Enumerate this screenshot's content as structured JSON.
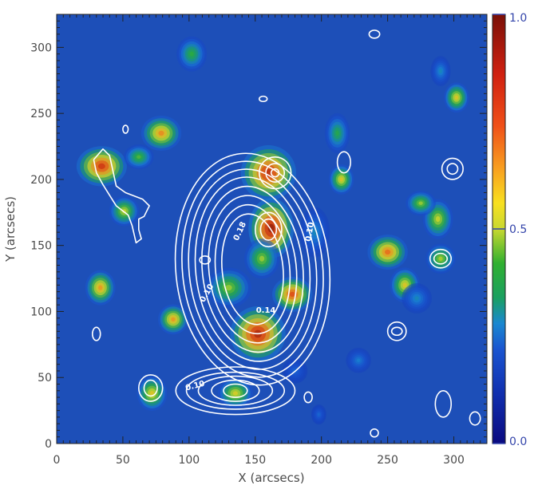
{
  "chart_data": {
    "type": "heatmap",
    "title": "",
    "xlabel": "X (arcsecs)",
    "ylabel": "Y (arcsecs)",
    "xlim": [
      0,
      325
    ],
    "ylim": [
      0,
      325
    ],
    "x_ticks": [
      0,
      50,
      100,
      150,
      200,
      250,
      300
    ],
    "y_ticks": [
      0,
      50,
      100,
      150,
      200,
      250,
      300
    ],
    "colorbar": {
      "range": [
        0.0,
        1.0
      ],
      "tick_values": [
        0.0,
        0.5,
        1.0
      ],
      "tick_labels": [
        "0.0",
        "0.5",
        "1.0"
      ],
      "colormap": "blue-green-yellow-red"
    },
    "background_value": 0.15,
    "blobs": [
      {
        "x": 162,
        "y": 163,
        "value": 1.0,
        "sx": 9,
        "sy": 12
      },
      {
        "x": 160,
        "y": 205,
        "value": 0.92,
        "sx": 11,
        "sy": 11
      },
      {
        "x": 152,
        "y": 83,
        "value": 0.95,
        "sx": 11,
        "sy": 11
      },
      {
        "x": 178,
        "y": 113,
        "value": 0.82,
        "sx": 8,
        "sy": 7
      },
      {
        "x": 34,
        "y": 210,
        "value": 0.88,
        "sx": 10,
        "sy": 8
      },
      {
        "x": 79,
        "y": 235,
        "value": 0.7,
        "sx": 8,
        "sy": 7
      },
      {
        "x": 62,
        "y": 217,
        "value": 0.45,
        "sx": 6,
        "sy": 5
      },
      {
        "x": 51,
        "y": 176,
        "value": 0.55,
        "sx": 6,
        "sy": 6
      },
      {
        "x": 33,
        "y": 118,
        "value": 0.68,
        "sx": 6,
        "sy": 7
      },
      {
        "x": 88,
        "y": 94,
        "value": 0.68,
        "sx": 6,
        "sy": 6
      },
      {
        "x": 72,
        "y": 38,
        "value": 0.6,
        "sx": 6,
        "sy": 7
      },
      {
        "x": 135,
        "y": 38,
        "value": 0.58,
        "sx": 7,
        "sy": 6
      },
      {
        "x": 130,
        "y": 118,
        "value": 0.5,
        "sx": 9,
        "sy": 8
      },
      {
        "x": 155,
        "y": 140,
        "value": 0.5,
        "sx": 7,
        "sy": 8
      },
      {
        "x": 102,
        "y": 295,
        "value": 0.42,
        "sx": 6,
        "sy": 7
      },
      {
        "x": 215,
        "y": 200,
        "value": 0.6,
        "sx": 5,
        "sy": 6
      },
      {
        "x": 212,
        "y": 235,
        "value": 0.4,
        "sx": 5,
        "sy": 8
      },
      {
        "x": 250,
        "y": 145,
        "value": 0.75,
        "sx": 8,
        "sy": 7
      },
      {
        "x": 263,
        "y": 120,
        "value": 0.6,
        "sx": 6,
        "sy": 7
      },
      {
        "x": 290,
        "y": 140,
        "value": 0.52,
        "sx": 6,
        "sy": 6
      },
      {
        "x": 288,
        "y": 170,
        "value": 0.55,
        "sx": 6,
        "sy": 8
      },
      {
        "x": 275,
        "y": 182,
        "value": 0.5,
        "sx": 6,
        "sy": 5
      },
      {
        "x": 302,
        "y": 262,
        "value": 0.6,
        "sx": 5,
        "sy": 6
      },
      {
        "x": 290,
        "y": 282,
        "value": 0.3,
        "sx": 4,
        "sy": 6
      },
      {
        "x": 272,
        "y": 110,
        "value": 0.3,
        "sx": 6,
        "sy": 6
      },
      {
        "x": 195,
        "y": 160,
        "value": 0.3,
        "sx": 6,
        "sy": 10
      },
      {
        "x": 228,
        "y": 63,
        "value": 0.28,
        "sx": 5,
        "sy": 5
      },
      {
        "x": 198,
        "y": 22,
        "value": 0.25,
        "sx": 3,
        "sy": 4
      },
      {
        "x": 180,
        "y": 55,
        "value": 0.25,
        "sx": 5,
        "sy": 5
      }
    ],
    "contour_groups": [
      {
        "cx": 148,
        "cy": 132,
        "levels": [
          {
            "rx": 58,
            "ry": 88
          },
          {
            "rx": 53,
            "ry": 82
          },
          {
            "rx": 48,
            "ry": 76
          },
          {
            "rx": 43,
            "ry": 70
          },
          {
            "rx": 38,
            "ry": 63
          },
          {
            "rx": 33,
            "ry": 56
          },
          {
            "rx": 28,
            "ry": 49
          },
          {
            "rx": 23,
            "ry": 42
          }
        ],
        "rotate": -6
      },
      {
        "cx": 160,
        "cy": 162,
        "levels": [
          {
            "rx": 10,
            "ry": 13
          },
          {
            "rx": 6,
            "ry": 8
          }
        ],
        "rotate": 0
      },
      {
        "cx": 165,
        "cy": 205,
        "levels": [
          {
            "rx": 12,
            "ry": 12
          },
          {
            "rx": 7,
            "ry": 7
          },
          {
            "rx": 3,
            "ry": 3
          }
        ],
        "rotate": 0
      },
      {
        "cx": 135,
        "cy": 40,
        "levels": [
          {
            "rx": 45,
            "ry": 18
          },
          {
            "rx": 37,
            "ry": 14
          },
          {
            "rx": 28,
            "ry": 11
          },
          {
            "rx": 18,
            "ry": 8
          },
          {
            "rx": 9,
            "ry": 5
          }
        ],
        "rotate": 0
      },
      {
        "cx": 71,
        "cy": 42,
        "levels": [
          {
            "rx": 9,
            "ry": 10
          },
          {
            "rx": 5,
            "ry": 6
          }
        ],
        "rotate": 0
      },
      {
        "cx": 299,
        "cy": 208,
        "levels": [
          {
            "rx": 8,
            "ry": 8
          },
          {
            "rx": 4,
            "ry": 4
          }
        ],
        "rotate": 0
      },
      {
        "cx": 290,
        "cy": 140,
        "levels": [
          {
            "rx": 8,
            "ry": 7
          },
          {
            "rx": 5,
            "ry": 4
          }
        ],
        "rotate": 0
      },
      {
        "cx": 257,
        "cy": 85,
        "levels": [
          {
            "rx": 7,
            "ry": 7
          },
          {
            "rx": 4,
            "ry": 3
          }
        ],
        "rotate": 0
      },
      {
        "cx": 292,
        "cy": 30,
        "levels": [
          {
            "rx": 6,
            "ry": 10
          }
        ],
        "rotate": 0
      },
      {
        "cx": 316,
        "cy": 19,
        "levels": [
          {
            "rx": 4,
            "ry": 5
          }
        ],
        "rotate": 0
      },
      {
        "cx": 240,
        "cy": 8,
        "levels": [
          {
            "rx": 3,
            "ry": 3
          }
        ],
        "rotate": 0
      },
      {
        "cx": 30,
        "cy": 83,
        "levels": [
          {
            "rx": 3,
            "ry": 5
          }
        ],
        "rotate": 0
      },
      {
        "cx": 112,
        "cy": 139,
        "levels": [
          {
            "rx": 4,
            "ry": 3
          }
        ],
        "rotate": 0
      },
      {
        "cx": 240,
        "cy": 310,
        "levels": [
          {
            "rx": 4,
            "ry": 3
          }
        ],
        "rotate": 0
      },
      {
        "cx": 156,
        "cy": 261,
        "levels": [
          {
            "rx": 3,
            "ry": 2
          }
        ],
        "rotate": 0
      },
      {
        "cx": 52,
        "cy": 238,
        "levels": [
          {
            "rx": 2,
            "ry": 3
          }
        ],
        "rotate": 0
      },
      {
        "cx": 217,
        "cy": 213,
        "levels": [
          {
            "rx": 5,
            "ry": 8
          }
        ],
        "rotate": 0
      },
      {
        "cx": 190,
        "cy": 35,
        "levels": [
          {
            "rx": 3,
            "ry": 4
          }
        ],
        "rotate": 0
      }
    ],
    "contour_lines": [
      {
        "points": [
          [
            28,
            215
          ],
          [
            35,
            223
          ],
          [
            40,
            218
          ],
          [
            45,
            195
          ],
          [
            52,
            190
          ],
          [
            65,
            185
          ],
          [
            70,
            180
          ],
          [
            66,
            172
          ],
          [
            62,
            170
          ],
          [
            62,
            162
          ],
          [
            64,
            155
          ],
          [
            60,
            152
          ],
          [
            57,
            165
          ],
          [
            54,
            173
          ],
          [
            45,
            180
          ],
          [
            40,
            188
          ],
          [
            35,
            196
          ],
          [
            30,
            205
          ],
          [
            28,
            215
          ]
        ]
      }
    ],
    "contour_labels": [
      {
        "text": "0.10",
        "x": 115,
        "y": 113,
        "rotate": -60
      },
      {
        "text": "0.14",
        "x": 158,
        "y": 99,
        "rotate": 0
      },
      {
        "text": "0.10",
        "x": 193,
        "y": 160,
        "rotate": -80
      },
      {
        "text": "0.18",
        "x": 140,
        "y": 160,
        "rotate": -65
      },
      {
        "text": "0.10",
        "x": 105,
        "y": 42,
        "rotate": -15
      }
    ]
  }
}
